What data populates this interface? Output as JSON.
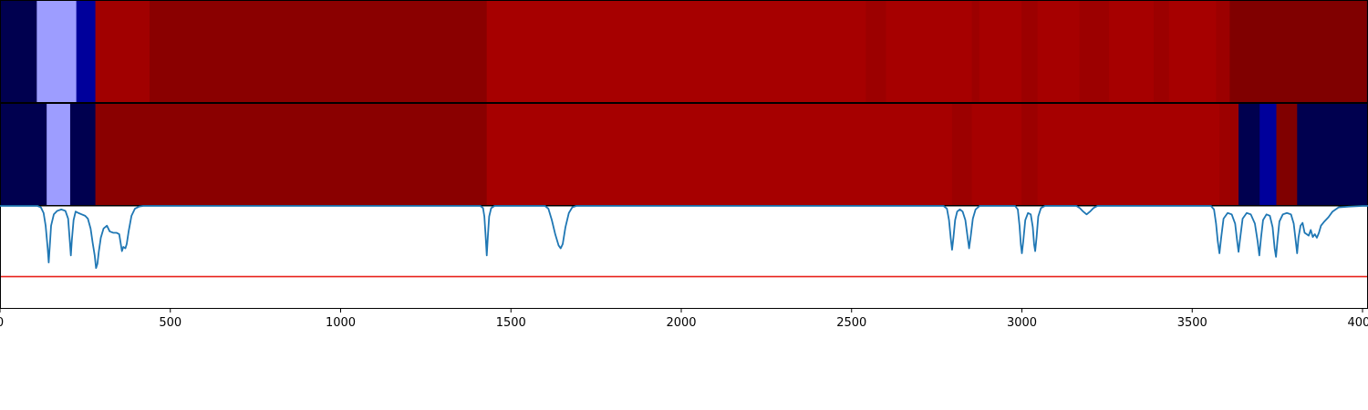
{
  "chart_data": {
    "type": "heatmap",
    "x_axis": {
      "range": [
        0,
        4020
      ],
      "ticks": [
        0,
        500,
        1000,
        1500,
        2000,
        2500,
        3000,
        3500,
        4000
      ],
      "tick_labels": [
        "0",
        "500",
        "1000",
        "1500",
        "2000",
        "2500",
        "3000",
        "3500",
        "4000"
      ]
    },
    "bands": [
      {
        "segments": [
          {
            "x0": 0,
            "x1": 108,
            "color": "#00004f"
          },
          {
            "x0": 108,
            "x1": 224,
            "color": "#9d9dff"
          },
          {
            "x0": 224,
            "x1": 280,
            "color": "#00009b"
          },
          {
            "x0": 280,
            "x1": 439,
            "color": "#a10000"
          },
          {
            "x0": 439,
            "x1": 1429,
            "color": "#8a0000"
          },
          {
            "x0": 1429,
            "x1": 2542,
            "color": "#a60000"
          },
          {
            "x0": 2542,
            "x1": 2601,
            "color": "#9c0000"
          },
          {
            "x0": 2601,
            "x1": 2853,
            "color": "#a60000"
          },
          {
            "x0": 2853,
            "x1": 2875,
            "color": "#9c0000"
          },
          {
            "x0": 2875,
            "x1": 2999,
            "color": "#a60000"
          },
          {
            "x0": 2999,
            "x1": 3046,
            "color": "#9c0000"
          },
          {
            "x0": 3046,
            "x1": 3169,
            "color": "#a60000"
          },
          {
            "x0": 3169,
            "x1": 3256,
            "color": "#9c0000"
          },
          {
            "x0": 3256,
            "x1": 3387,
            "color": "#a60000"
          },
          {
            "x0": 3387,
            "x1": 3432,
            "color": "#9c0000"
          },
          {
            "x0": 3432,
            "x1": 3570,
            "color": "#a60000"
          },
          {
            "x0": 3570,
            "x1": 3610,
            "color": "#9c0000"
          },
          {
            "x0": 3610,
            "x1": 4013,
            "color": "#800000"
          },
          {
            "x0": 4013,
            "x1": 4020,
            "color": "#00004f"
          }
        ]
      },
      {
        "segments": [
          {
            "x0": 0,
            "x1": 137,
            "color": "#00004f"
          },
          {
            "x0": 137,
            "x1": 206,
            "color": "#9d9dff"
          },
          {
            "x0": 206,
            "x1": 280,
            "color": "#00004f"
          },
          {
            "x0": 280,
            "x1": 1429,
            "color": "#8a0000"
          },
          {
            "x0": 1429,
            "x1": 2795,
            "color": "#a60000"
          },
          {
            "x0": 2795,
            "x1": 2853,
            "color": "#9c0000"
          },
          {
            "x0": 2853,
            "x1": 2999,
            "color": "#a60000"
          },
          {
            "x0": 2999,
            "x1": 3046,
            "color": "#9c0000"
          },
          {
            "x0": 3046,
            "x1": 3580,
            "color": "#a60000"
          },
          {
            "x0": 3580,
            "x1": 3636,
            "color": "#9c0000"
          },
          {
            "x0": 3636,
            "x1": 3698,
            "color": "#00004f"
          },
          {
            "x0": 3698,
            "x1": 3747,
            "color": "#00009b"
          },
          {
            "x0": 3747,
            "x1": 3808,
            "color": "#800000"
          },
          {
            "x0": 3808,
            "x1": 4020,
            "color": "#00004f"
          }
        ]
      }
    ],
    "spectrum": {
      "color": "#1f77b4",
      "baseline": 1.0,
      "ylim": [
        -0.45,
        1.0
      ],
      "threshold": {
        "value": 0.0,
        "color": "#e8231d"
      },
      "points": [
        [
          0,
          1.0
        ],
        [
          110,
          1.0
        ],
        [
          120,
          0.98
        ],
        [
          128,
          0.9
        ],
        [
          134,
          0.72
        ],
        [
          140,
          0.4
        ],
        [
          143,
          0.2
        ],
        [
          146,
          0.42
        ],
        [
          150,
          0.72
        ],
        [
          158,
          0.88
        ],
        [
          168,
          0.93
        ],
        [
          180,
          0.95
        ],
        [
          192,
          0.93
        ],
        [
          200,
          0.82
        ],
        [
          205,
          0.5
        ],
        [
          208,
          0.3
        ],
        [
          211,
          0.52
        ],
        [
          216,
          0.8
        ],
        [
          222,
          0.92
        ],
        [
          230,
          0.9
        ],
        [
          240,
          0.88
        ],
        [
          250,
          0.86
        ],
        [
          258,
          0.82
        ],
        [
          266,
          0.68
        ],
        [
          272,
          0.48
        ],
        [
          278,
          0.3
        ],
        [
          282,
          0.12
        ],
        [
          286,
          0.18
        ],
        [
          290,
          0.35
        ],
        [
          296,
          0.55
        ],
        [
          304,
          0.68
        ],
        [
          314,
          0.72
        ],
        [
          322,
          0.64
        ],
        [
          332,
          0.62
        ],
        [
          342,
          0.62
        ],
        [
          350,
          0.6
        ],
        [
          354,
          0.48
        ],
        [
          358,
          0.36
        ],
        [
          362,
          0.42
        ],
        [
          368,
          0.4
        ],
        [
          372,
          0.46
        ],
        [
          378,
          0.65
        ],
        [
          386,
          0.86
        ],
        [
          396,
          0.96
        ],
        [
          408,
          0.99
        ],
        [
          420,
          1.0
        ],
        [
          1410,
          1.0
        ],
        [
          1418,
          0.97
        ],
        [
          1422,
          0.85
        ],
        [
          1426,
          0.55
        ],
        [
          1429,
          0.3
        ],
        [
          1432,
          0.55
        ],
        [
          1436,
          0.85
        ],
        [
          1442,
          0.97
        ],
        [
          1452,
          1.0
        ],
        [
          1600,
          1.0
        ],
        [
          1610,
          0.96
        ],
        [
          1620,
          0.8
        ],
        [
          1630,
          0.6
        ],
        [
          1640,
          0.44
        ],
        [
          1646,
          0.4
        ],
        [
          1652,
          0.46
        ],
        [
          1660,
          0.7
        ],
        [
          1670,
          0.9
        ],
        [
          1680,
          0.98
        ],
        [
          1692,
          1.0
        ],
        [
          2770,
          1.0
        ],
        [
          2780,
          0.96
        ],
        [
          2786,
          0.8
        ],
        [
          2791,
          0.55
        ],
        [
          2795,
          0.38
        ],
        [
          2799,
          0.55
        ],
        [
          2804,
          0.8
        ],
        [
          2810,
          0.92
        ],
        [
          2818,
          0.95
        ],
        [
          2826,
          0.92
        ],
        [
          2834,
          0.8
        ],
        [
          2840,
          0.58
        ],
        [
          2845,
          0.4
        ],
        [
          2850,
          0.58
        ],
        [
          2856,
          0.82
        ],
        [
          2864,
          0.95
        ],
        [
          2876,
          1.0
        ],
        [
          2980,
          1.0
        ],
        [
          2988,
          0.95
        ],
        [
          2993,
          0.72
        ],
        [
          2997,
          0.45
        ],
        [
          3000,
          0.33
        ],
        [
          3004,
          0.5
        ],
        [
          3010,
          0.8
        ],
        [
          3018,
          0.9
        ],
        [
          3026,
          0.88
        ],
        [
          3032,
          0.7
        ],
        [
          3036,
          0.45
        ],
        [
          3039,
          0.36
        ],
        [
          3043,
          0.55
        ],
        [
          3048,
          0.85
        ],
        [
          3056,
          0.97
        ],
        [
          3068,
          1.0
        ],
        [
          3160,
          1.0
        ],
        [
          3170,
          0.97
        ],
        [
          3180,
          0.92
        ],
        [
          3190,
          0.88
        ],
        [
          3200,
          0.92
        ],
        [
          3210,
          0.97
        ],
        [
          3222,
          1.0
        ],
        [
          3555,
          1.0
        ],
        [
          3564,
          0.95
        ],
        [
          3570,
          0.75
        ],
        [
          3575,
          0.5
        ],
        [
          3580,
          0.33
        ],
        [
          3585,
          0.55
        ],
        [
          3592,
          0.82
        ],
        [
          3604,
          0.9
        ],
        [
          3616,
          0.88
        ],
        [
          3626,
          0.75
        ],
        [
          3632,
          0.5
        ],
        [
          3636,
          0.35
        ],
        [
          3641,
          0.55
        ],
        [
          3648,
          0.82
        ],
        [
          3660,
          0.9
        ],
        [
          3672,
          0.88
        ],
        [
          3684,
          0.75
        ],
        [
          3692,
          0.5
        ],
        [
          3697,
          0.3
        ],
        [
          3702,
          0.55
        ],
        [
          3708,
          0.8
        ],
        [
          3718,
          0.88
        ],
        [
          3728,
          0.86
        ],
        [
          3736,
          0.7
        ],
        [
          3742,
          0.4
        ],
        [
          3746,
          0.28
        ],
        [
          3750,
          0.5
        ],
        [
          3756,
          0.78
        ],
        [
          3766,
          0.88
        ],
        [
          3778,
          0.9
        ],
        [
          3790,
          0.88
        ],
        [
          3798,
          0.75
        ],
        [
          3804,
          0.5
        ],
        [
          3808,
          0.33
        ],
        [
          3812,
          0.55
        ],
        [
          3818,
          0.72
        ],
        [
          3824,
          0.76
        ],
        [
          3830,
          0.62
        ],
        [
          3836,
          0.6
        ],
        [
          3842,
          0.58
        ],
        [
          3848,
          0.66
        ],
        [
          3854,
          0.56
        ],
        [
          3860,
          0.6
        ],
        [
          3866,
          0.55
        ],
        [
          3872,
          0.62
        ],
        [
          3878,
          0.72
        ],
        [
          3888,
          0.78
        ],
        [
          3900,
          0.84
        ],
        [
          3912,
          0.92
        ],
        [
          3930,
          0.98
        ],
        [
          3960,
          0.99
        ],
        [
          4000,
          1.0
        ],
        [
          4020,
          1.0
        ]
      ]
    }
  }
}
